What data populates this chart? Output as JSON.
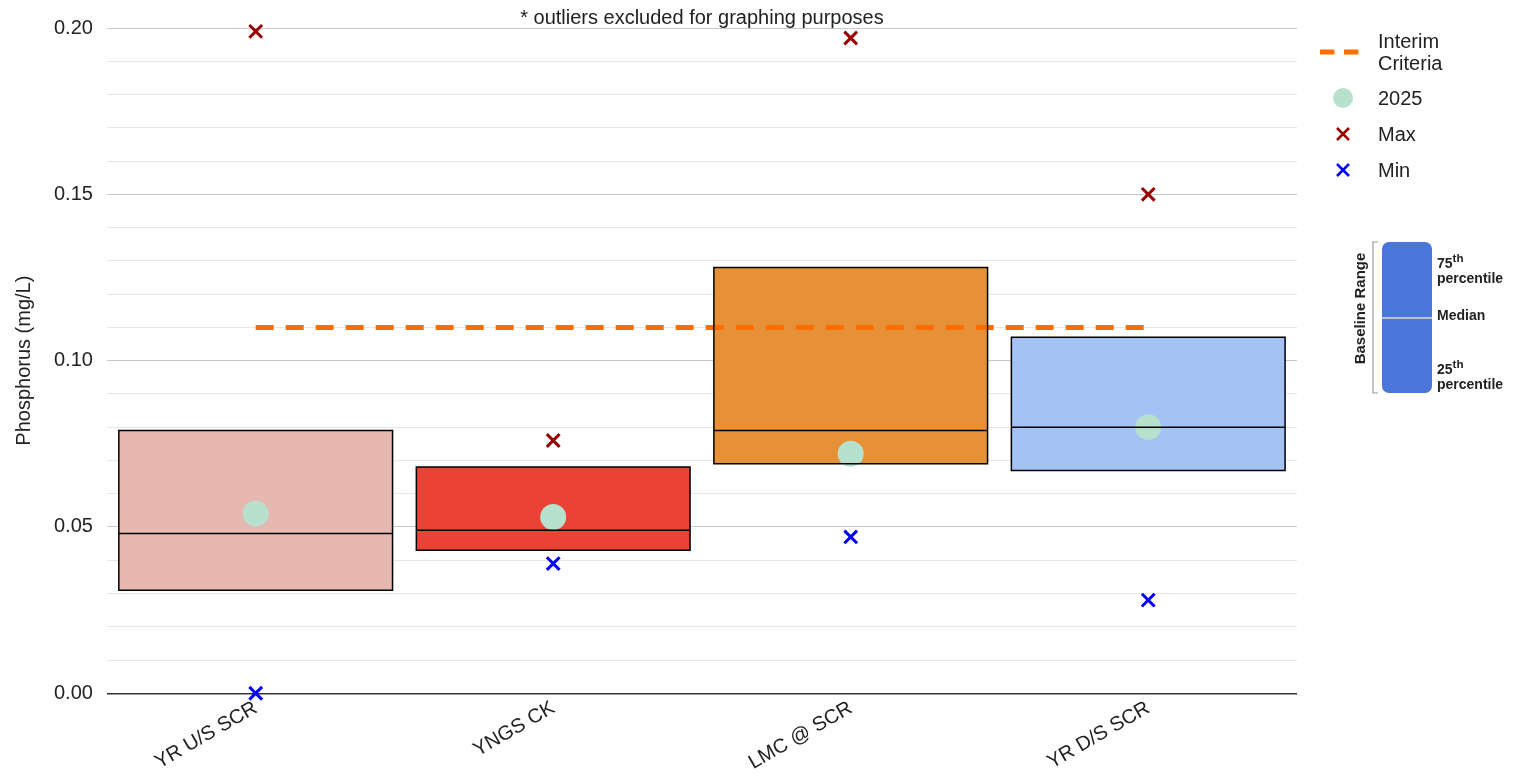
{
  "chart_data": {
    "type": "box",
    "ylabel": "Phosphorus (mg/L)",
    "categories": [
      "YR U/S SCR",
      "YNGS CK",
      "LMC @ SCR",
      "YR D/S SCR"
    ],
    "ylim": [
      0,
      0.2
    ],
    "yticks": [
      {
        "value": 0,
        "label": "0.00"
      },
      {
        "value": 0.01,
        "label": null
      },
      {
        "value": 0.02,
        "label": null
      },
      {
        "value": 0.03,
        "label": null
      },
      {
        "value": 0.04,
        "label": null
      },
      0.05,
      {
        "value": 0.06,
        "label": null
      },
      {
        "value": 0.07,
        "label": null
      },
      {
        "value": 0.08,
        "label": null
      },
      {
        "value": 0.09,
        "label": null
      },
      {
        "value": 0.1,
        "label": "0.10"
      },
      {
        "value": 0.11,
        "label": null
      },
      {
        "value": 0.12,
        "label": null
      },
      {
        "value": 0.13,
        "label": null
      },
      {
        "value": 0.14,
        "label": null
      },
      0.15,
      {
        "value": 0.16,
        "label": null
      },
      {
        "value": 0.17,
        "label": null
      },
      {
        "value": 0.18,
        "label": null
      },
      {
        "value": 0.19,
        "label": null
      },
      {
        "value": 0.2,
        "label": "0.20"
      }
    ],
    "grid": "y",
    "legend": "top right",
    "series": [
      {
        "type": "box",
        "colors": [
          "#e6b8af",
          "#ea4335",
          "#e69138",
          "#a4c2f4"
        ],
        "boxes": [
          {
            "low": 0.031,
            "q1": 0.031,
            "median": 0.048,
            "q3": 0.079,
            "high": 0.079
          },
          {
            "low": 0.043,
            "q1": 0.043,
            "median": 0.049,
            "q3": 0.068,
            "high": 0.068
          },
          {
            "low": 0.069,
            "q1": 0.069,
            "median": 0.079,
            "q3": 0.128,
            "high": 0.128
          },
          {
            "low": 0.067,
            "q1": 0.067,
            "median": 0.08,
            "q3": 0.107,
            "high": 0.107
          }
        ]
      },
      {
        "type": "line",
        "name": "Interim Criteria",
        "color": "#ff6d01",
        "line_style": "dashed",
        "marker": "none",
        "values": [
          0.11,
          0.11,
          0.11,
          0.11
        ]
      },
      {
        "type": "scatter",
        "name": "2025",
        "color": "#b7e1cd",
        "marker": "circle",
        "values": [
          0.054,
          0.053,
          0.072,
          0.08
        ]
      },
      {
        "type": "scatter",
        "name": "Max",
        "color": "#990000",
        "marker": "cross",
        "values": [
          0.199,
          0.076,
          0.197,
          0.15
        ]
      },
      {
        "type": "scatter",
        "name": "Min",
        "color": "#0000ff",
        "marker": "cross",
        "values": [
          0,
          0.039,
          0.047,
          0.028
        ]
      }
    ],
    "annotations": [
      "* outliers excluded for graphing purposes",
      "Baseline Range",
      "75$^{th}$ percentile",
      "Median",
      "25$^{th}$ percentile"
    ]
  }
}
